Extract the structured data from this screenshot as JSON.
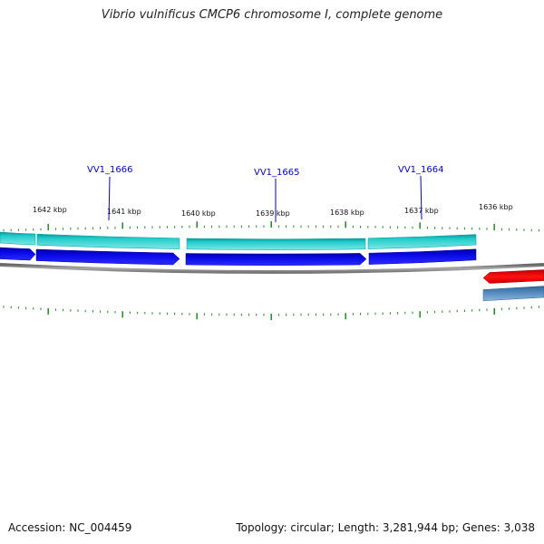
{
  "title": "Vibrio vulnificus CMCP6 chromosome I, complete genome",
  "footer": {
    "accession": "Accession: NC_004459",
    "summary": "Topology: circular; Length: 3,281,944 bp; Genes: 3,038"
  },
  "colors": {
    "cds_light": "#22cccc",
    "gene_dark": "#0a0ae6",
    "backbone": "#888888",
    "tick": "#228822",
    "red_gene": "#ee0000",
    "steel_gene": "#4a7fb5",
    "label": "#0000cc"
  },
  "tick_labels": [
    "1642 kbp",
    "1641 kbp",
    "1640 kbp",
    "1639 kbp",
    "1638 kbp",
    "1637 kbp",
    "1636 kbp"
  ],
  "gene_labels": [
    "VV1_1666",
    "VV1_1665",
    "VV1_1664"
  ],
  "icons": [
    "none"
  ]
}
